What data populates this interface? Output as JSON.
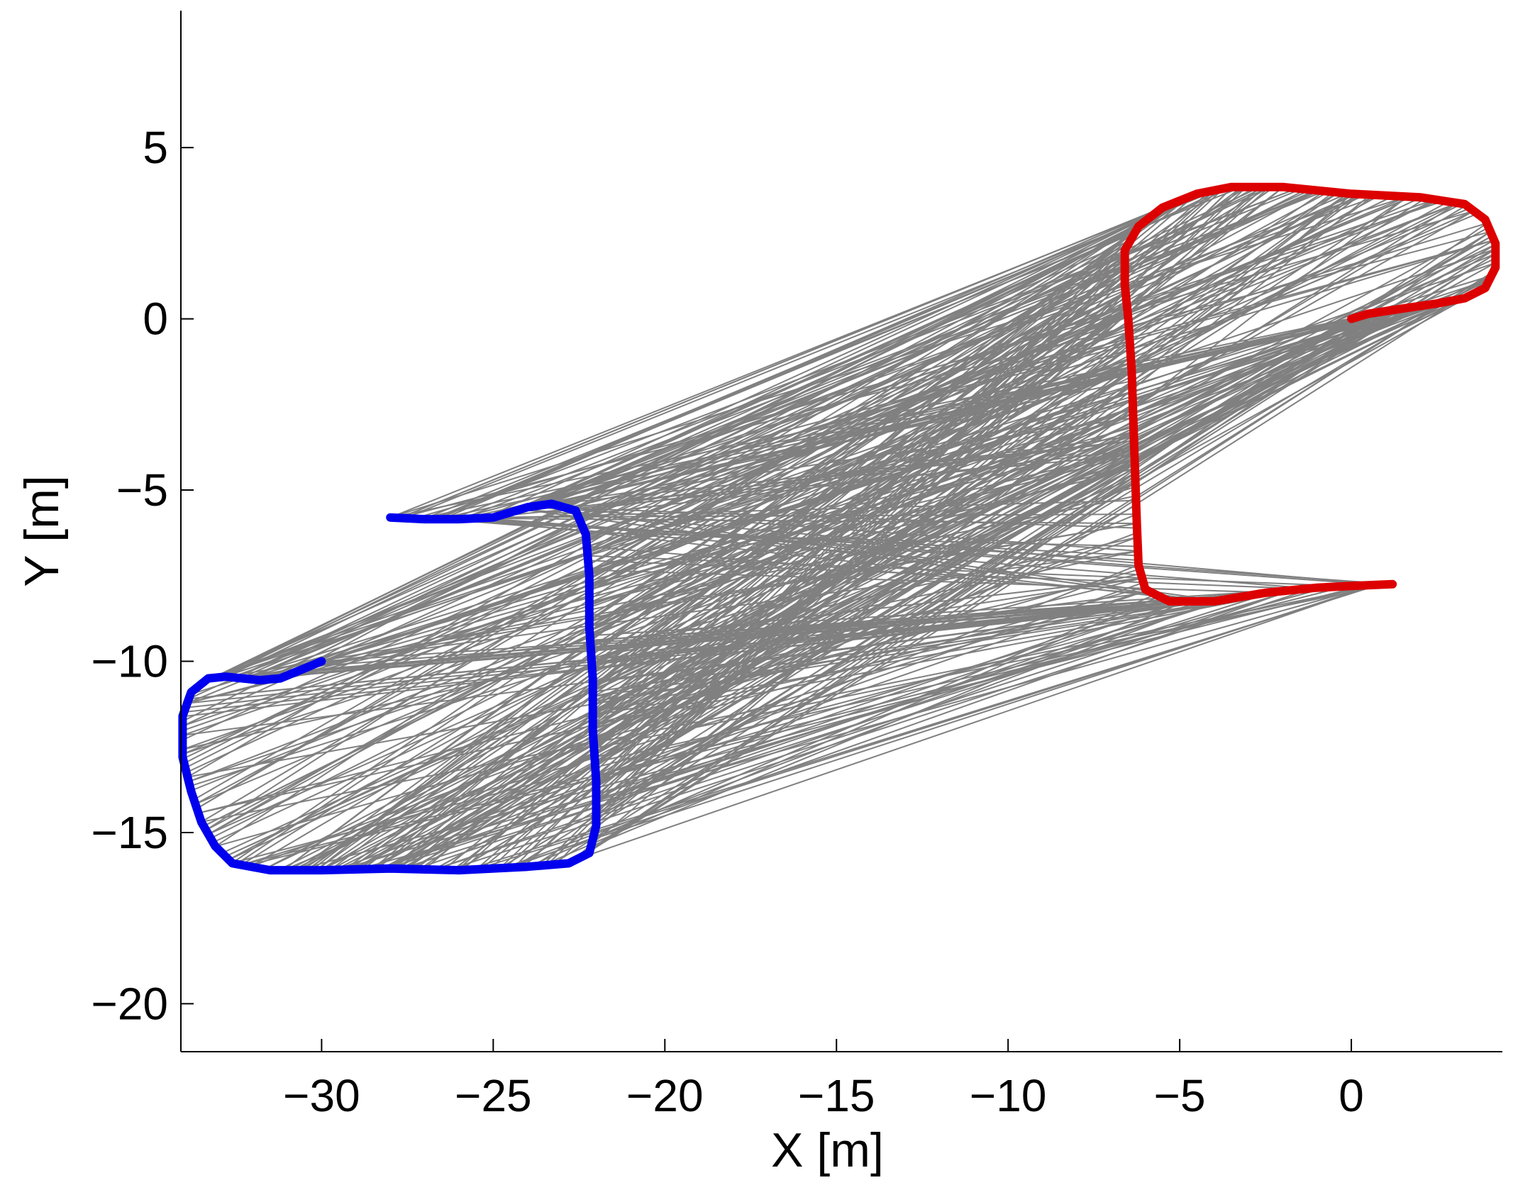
{
  "chart_data": {
    "type": "line",
    "title": "",
    "xlabel": "X [m]",
    "ylabel": "Y [m]",
    "xlim": [
      -34.1,
      4.4
    ],
    "ylim": [
      -21.4,
      9.0
    ],
    "xticks": [
      -30,
      -25,
      -20,
      -15,
      -10,
      -5,
      0
    ],
    "yticks": [
      5,
      0,
      -5,
      -10,
      -15,
      -20
    ],
    "xtick_labels": [
      "−30",
      "−25",
      "−20",
      "−15",
      "−10",
      "−5",
      "0"
    ],
    "ytick_labels": [
      "5",
      "0",
      "−5",
      "−10",
      "−15",
      "−20"
    ],
    "grid": false,
    "legend": "none",
    "colors": {
      "series_a": "#0000ee",
      "series_b": "#dd0000",
      "links": "#808080"
    },
    "series": [
      {
        "values": [
          [
            -28.0,
            -5.8
          ],
          [
            -27.0,
            -5.85
          ],
          [
            -26.0,
            -5.85
          ],
          [
            -25.0,
            -5.8
          ],
          [
            -24.0,
            -5.5
          ],
          [
            -23.3,
            -5.4
          ],
          [
            -22.6,
            -5.6
          ],
          [
            -22.3,
            -6.3
          ],
          [
            -22.2,
            -7.5
          ],
          [
            -22.2,
            -9.0
          ],
          [
            -22.1,
            -10.5
          ],
          [
            -22.1,
            -12.0
          ],
          [
            -22.0,
            -13.5
          ],
          [
            -22.0,
            -14.8
          ],
          [
            -22.2,
            -15.6
          ],
          [
            -22.8,
            -15.9
          ],
          [
            -24.0,
            -16.0
          ],
          [
            -26.0,
            -16.1
          ],
          [
            -28.0,
            -16.05
          ],
          [
            -30.0,
            -16.1
          ],
          [
            -31.5,
            -16.1
          ],
          [
            -32.6,
            -15.9
          ],
          [
            -33.1,
            -15.4
          ],
          [
            -33.5,
            -14.7
          ],
          [
            -33.8,
            -13.8
          ],
          [
            -34.05,
            -12.8
          ],
          [
            -34.05,
            -11.6
          ],
          [
            -33.8,
            -10.9
          ],
          [
            -33.3,
            -10.5
          ],
          [
            -32.8,
            -10.45
          ],
          [
            -31.8,
            -10.55
          ],
          [
            -31.2,
            -10.5
          ],
          [
            -30.6,
            -10.25
          ],
          [
            -30.0,
            -10.0
          ]
        ]
      },
      {
        "values": [
          [
            0.0,
            0.0
          ],
          [
            0.5,
            0.15
          ],
          [
            1.5,
            0.3
          ],
          [
            2.5,
            0.45
          ],
          [
            3.3,
            0.6
          ],
          [
            3.9,
            0.9
          ],
          [
            4.2,
            1.5
          ],
          [
            4.2,
            2.2
          ],
          [
            3.9,
            2.9
          ],
          [
            3.3,
            3.35
          ],
          [
            2.0,
            3.55
          ],
          [
            0.0,
            3.65
          ],
          [
            -2.0,
            3.85
          ],
          [
            -3.5,
            3.85
          ],
          [
            -4.5,
            3.65
          ],
          [
            -5.5,
            3.25
          ],
          [
            -6.2,
            2.7
          ],
          [
            -6.6,
            2.0
          ],
          [
            -6.6,
            1.0
          ],
          [
            -6.5,
            0.0
          ],
          [
            -6.4,
            -1.5
          ],
          [
            -6.35,
            -3.0
          ],
          [
            -6.3,
            -4.5
          ],
          [
            -6.25,
            -6.0
          ],
          [
            -6.2,
            -7.2
          ],
          [
            -6.0,
            -7.9
          ],
          [
            -5.3,
            -8.25
          ],
          [
            -4.0,
            -8.25
          ],
          [
            -2.5,
            -8.0
          ],
          [
            -1.0,
            -7.85
          ],
          [
            0.0,
            -7.8
          ],
          [
            1.2,
            -7.75
          ]
        ]
      }
    ]
  }
}
